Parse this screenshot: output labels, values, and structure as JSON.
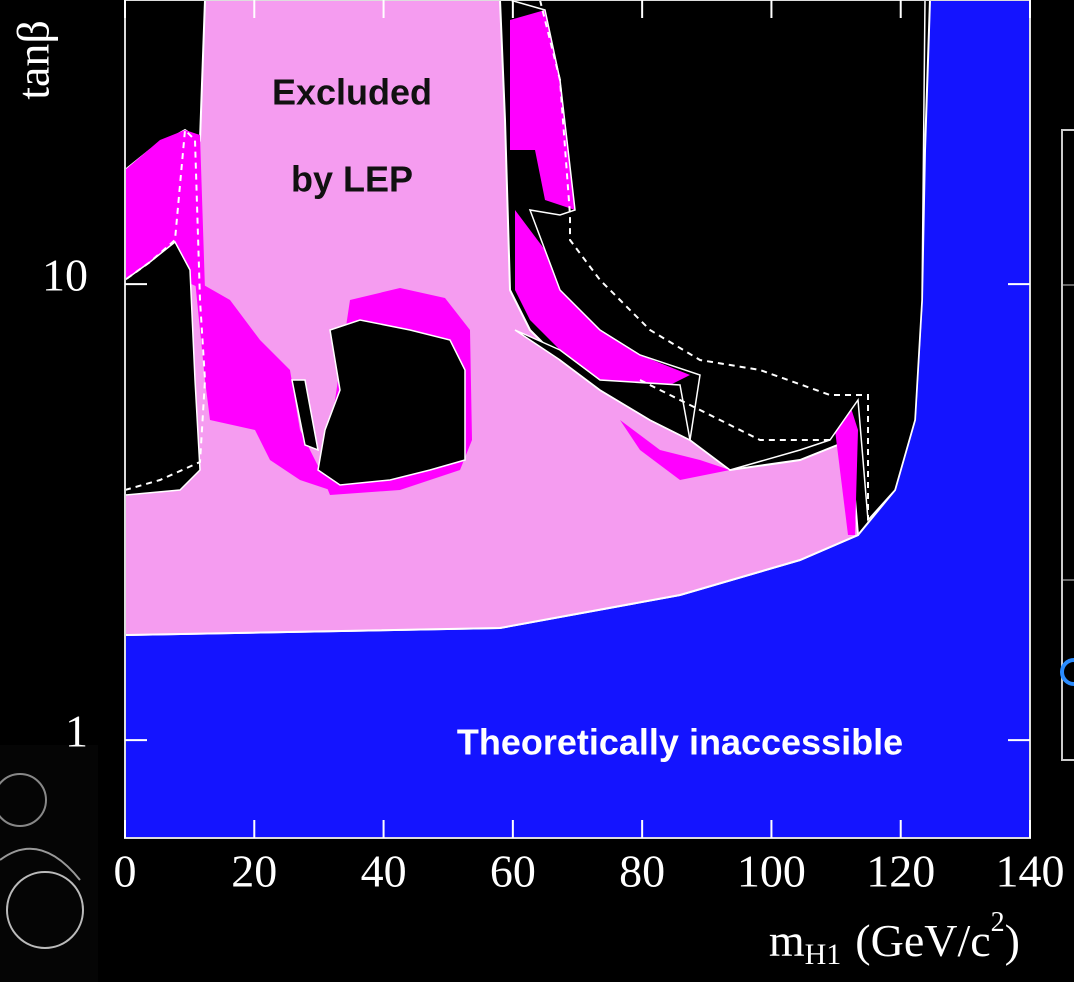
{
  "chart_data": {
    "type": "region",
    "y_label": "tanβ",
    "x_label_parts": [
      "m",
      "H1",
      "(GeV/c",
      "2",
      ")"
    ],
    "annotations": [
      "Excluded",
      "by LEP",
      "Theoretically inaccessible"
    ],
    "xlim": [
      0,
      140
    ],
    "xticks": [
      0,
      20,
      40,
      60,
      80,
      100,
      120,
      140
    ],
    "ylim": [
      0.61,
      42
    ],
    "yticks": [
      1,
      10
    ],
    "log_y": true
  }
}
